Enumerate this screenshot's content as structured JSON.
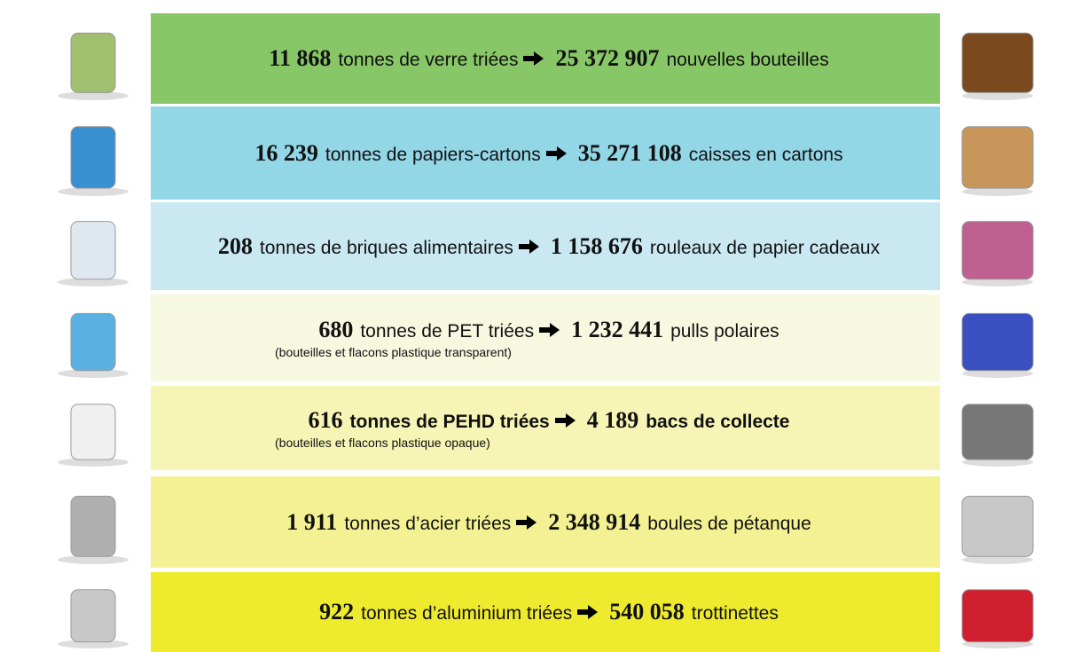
{
  "rows": [
    {
      "input_amount": "11 868",
      "input_text": "tonnes de verre triées",
      "output_amount": "25 372 907",
      "output_text": "nouvelles bouteilles"
    },
    {
      "input_amount": "16 239",
      "input_text": "tonnes de papiers-cartons",
      "output_amount": "35 271 108",
      "output_text": "caisses en cartons"
    },
    {
      "input_amount": "208",
      "input_text": "tonnes de briques alimentaires",
      "output_amount": "1 158 676",
      "output_text": "rouleaux de papier cadeaux"
    },
    {
      "input_amount": "680",
      "input_text": "tonnes de PET triées",
      "output_amount": "1 232 441",
      "output_text": "pulls polaires",
      "note": "(bouteilles et flacons plastique transparent)"
    },
    {
      "input_amount": "616",
      "input_text": "tonnes de PEHD triées",
      "output_amount": "4 189",
      "output_text": "bacs de collecte",
      "note": "(bouteilles et flacons plastique opaque)"
    },
    {
      "input_amount": "1 911",
      "input_text": "tonnes d’acier triées",
      "output_amount": "2 348 914",
      "output_text": "boules de pétanque"
    },
    {
      "input_amount": "922",
      "input_text": "tonnes d’aluminium triées",
      "output_amount": "540 058",
      "output_text": "trottinettes"
    }
  ]
}
